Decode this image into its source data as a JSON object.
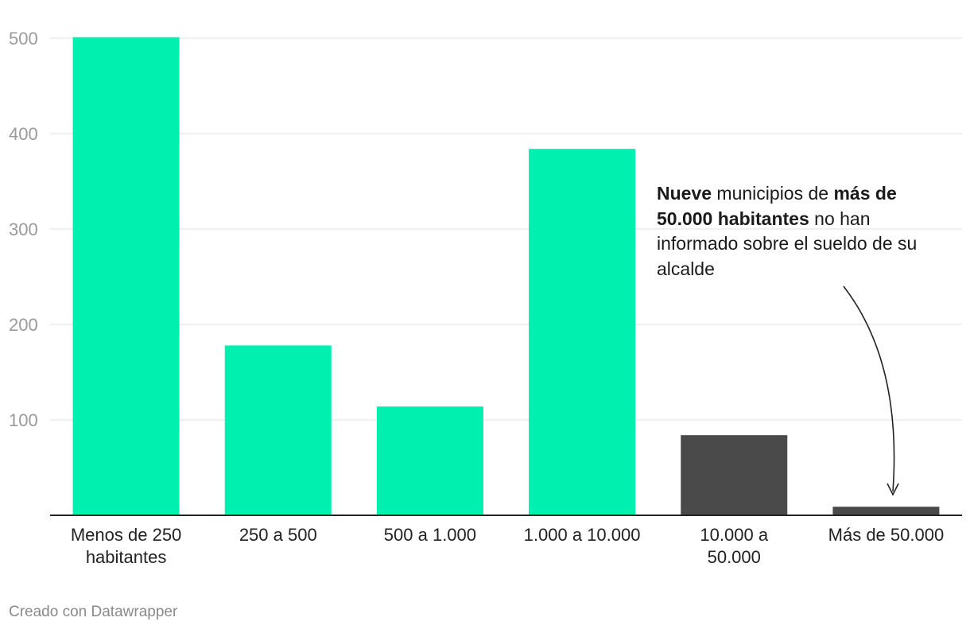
{
  "chart_data": {
    "type": "bar",
    "categories": [
      "Menos de 250\nhabitantes",
      "250 a 500",
      "500 a 1.000",
      "1.000 a 10.000",
      "10.000 a\n50.000",
      "Más de 50.000"
    ],
    "values": [
      501,
      178,
      114,
      384,
      84,
      9
    ],
    "bar_colors": [
      "#00f0b0",
      "#00f0b0",
      "#00f0b0",
      "#00f0b0",
      "#4a4a4a",
      "#4a4a4a"
    ],
    "yticks": [
      100,
      200,
      300,
      400,
      500
    ],
    "ylim": [
      0,
      500
    ],
    "grid": true,
    "title": "",
    "xlabel": "",
    "ylabel": ""
  },
  "annotation": {
    "part1_bold": "Nueve",
    "part2": " municipios de ",
    "part3_bold": "más de 50.000 habitantes",
    "part4": " no han informado sobre el sueldo de su alcalde"
  },
  "footer": {
    "credit": "Creado con Datawrapper"
  },
  "colors": {
    "grid": "#dedede",
    "axis": "#222222",
    "tick": "#9a9a9a"
  }
}
